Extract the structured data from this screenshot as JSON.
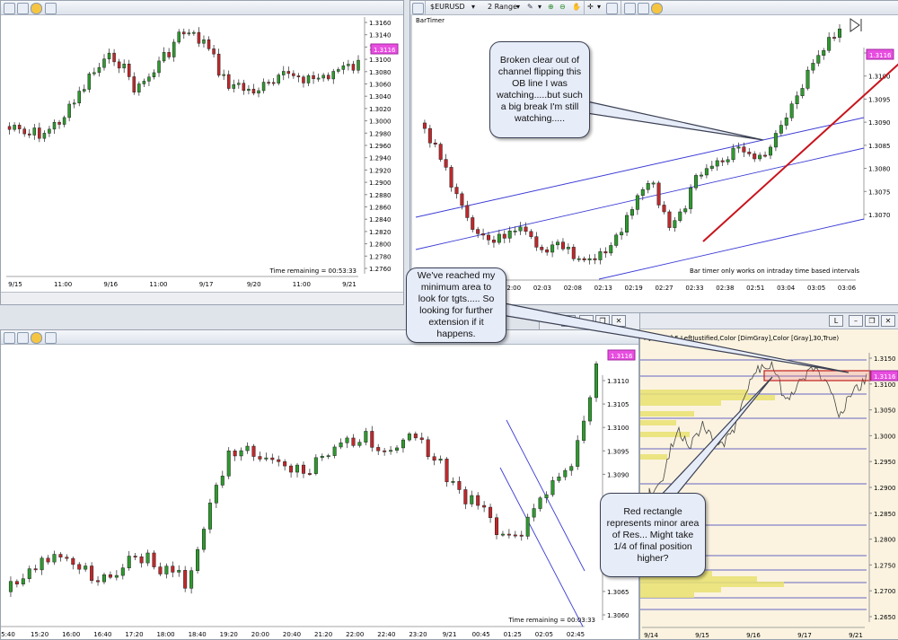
{
  "top_left": {
    "price_ticks": [
      "1.3160",
      "1.3140",
      "1.3120",
      "1.3100",
      "1.3080",
      "1.3060",
      "1.3040",
      "1.3020",
      "1.3000",
      "1.2980",
      "1.2960",
      "1.2940",
      "1.2920",
      "1.2900",
      "1.2880",
      "1.2860",
      "1.2840",
      "1.2820",
      "1.2800",
      "1.2780",
      "1.2760"
    ],
    "time_ticks": [
      "9/15",
      "11:00",
      "9/16",
      "11:00",
      "9/17",
      "9/20",
      "11:00",
      "9/21"
    ],
    "last_price": "1.3116",
    "time_remaining": "Time remaining = 00:53:33"
  },
  "top_right": {
    "toolbar": {
      "instrument": "$EURUSD",
      "period": "2 Range"
    },
    "indicator_label": "BarTimer",
    "price_ticks": [
      "1.3105",
      "1.3100",
      "1.3095",
      "1.3090",
      "1.3085",
      "1.3080",
      "1.3075",
      "1.3070"
    ],
    "time_ticks": [
      "02:00",
      "02:03",
      "02:08",
      "02:13",
      "02:19",
      "02:27",
      "02:33",
      "02:38",
      "02:51",
      "03:04",
      "03:05",
      "03:06"
    ],
    "last_price": "1.3116",
    "bar_timer_note": "Bar timer only works on intraday time based intervals"
  },
  "bottom_left": {
    "price_ticks": [
      "1.3110",
      "1.3105",
      "1.3100",
      "1.3095",
      "1.3090",
      "1.3085",
      "1.3080",
      "1.3075",
      "1.3070",
      "1.3065",
      "1.3060"
    ],
    "time_ticks": [
      "5:40",
      "15:20",
      "16:00",
      "16:40",
      "17:20",
      "18:00",
      "18:40",
      "19:20",
      "20:00",
      "20:40",
      "21:20",
      "22:00",
      "22:40",
      "23:20",
      "9/21",
      "00:45",
      "01:25",
      "02:05",
      "02:45"
    ],
    "last_price": "1.3116",
    "time_remaining": "Time remaining = 00:03:33"
  },
  "bottom_right": {
    "indicator_label": "r [Yellow],5,LeftJustified,Color [DimGray],Color [Gray],30,True)",
    "price_ticks": [
      "1.3150",
      "1.3100",
      "1.3050",
      "1.3000",
      "1.2950",
      "1.2900",
      "1.2850",
      "1.2800",
      "1.2750",
      "1.2700",
      "1.2650"
    ],
    "time_ticks": [
      "9/14",
      "9/15",
      "9/16",
      "9/17",
      "9/21"
    ],
    "last_price": "1.3116",
    "window_button": "L"
  },
  "callouts": {
    "channel_break": "Broken clear out of channel flipping this OB line I was watching.....but such a big break I'm still watching.....",
    "min_area": "We've reached my minimum area to look for tgts..... So looking for further extension if it happens.",
    "red_rectangle": "Red rectangle represents minor area of Res... Might take 1/4 of final position higher?"
  },
  "colors": {
    "up_candle": "#2e9a2e",
    "down_candle": "#c0282b",
    "channel_line": "#3b3bd6",
    "trend_line": "#c8141c",
    "price_badge": "#e84ee0",
    "volume_profile": "#e8e070",
    "right_bg": "#fbf3e0"
  },
  "chart_data": [
    {
      "type": "candlestick",
      "instrument": "$EURUSD",
      "x": [
        "9/15",
        "11:00",
        "9/16",
        "11:00",
        "9/17",
        "9/20",
        "11:00",
        "9/21"
      ],
      "ylim": [
        1.276,
        1.316
      ],
      "last": 1.3116
    },
    {
      "type": "candlestick",
      "instrument": "$EURUSD",
      "x": [
        "02:00",
        "02:03",
        "02:08",
        "02:13",
        "02:19",
        "02:27",
        "02:33",
        "02:38",
        "02:51",
        "03:04",
        "03:05",
        "03:06"
      ],
      "ylim": [
        1.3067,
        1.311
      ],
      "last": 1.3116
    },
    {
      "type": "candlestick",
      "instrument": "$EURUSD",
      "x": [
        "5:40",
        "15:20",
        "16:00",
        "16:40",
        "17:20",
        "18:00",
        "18:40",
        "19:20",
        "20:00",
        "20:40",
        "21:20",
        "22:00",
        "22:40",
        "23:20",
        "9/21",
        "00:45",
        "01:25",
        "02:05",
        "02:45"
      ],
      "ylim": [
        1.3058,
        1.3116
      ],
      "last": 1.3116
    },
    {
      "type": "line",
      "instrument": "$EURUSD",
      "x": [
        "9/14",
        "9/15",
        "9/16",
        "9/17",
        "9/21"
      ],
      "ylim": [
        1.264,
        1.317
      ],
      "last": 1.3116
    }
  ]
}
